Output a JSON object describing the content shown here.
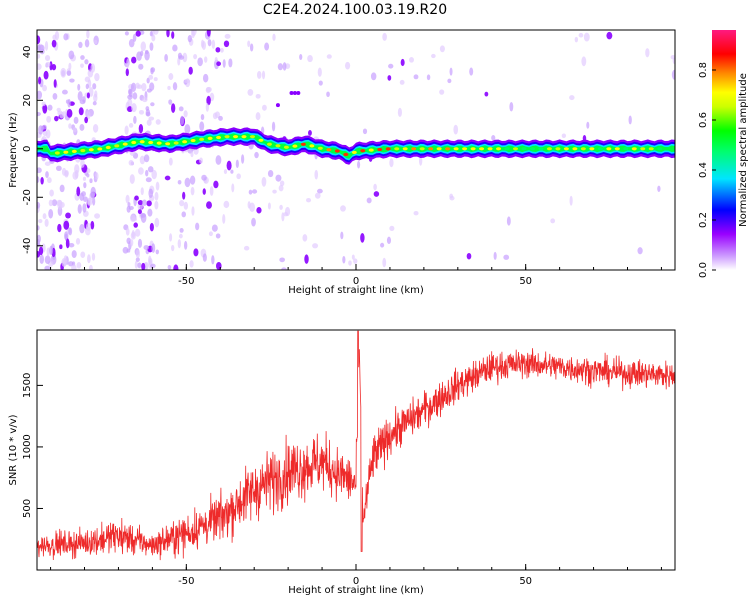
{
  "title": "C2E4.2024.100.03.19.R20",
  "colors": {
    "snr_line": "#ee2a2a",
    "colormap": [
      "#ffffff",
      "#9900ff",
      "#0000ff",
      "#00e5ff",
      "#00ff00",
      "#ffff00",
      "#ff8800",
      "#ff0000",
      "#ff1a80"
    ]
  },
  "chart_data": [
    {
      "type": "heatmap",
      "title": "C2E4.2024.100.03.19.R20",
      "xlabel": "Height of straight line (km)",
      "ylabel": "Frequency (Hz)",
      "xlim": [
        -94,
        94
      ],
      "ylim": [
        -50,
        49
      ],
      "xticks": [
        -50,
        0,
        50
      ],
      "yticks": [
        -40,
        -20,
        0,
        20,
        40
      ],
      "colorbar": {
        "label": "Normalized spectral amplitude",
        "range": [
          0,
          0.96
        ],
        "ticks": [
          "0.0",
          "0.2",
          "0.4",
          "0.6",
          "0.8"
        ]
      },
      "ridge": {
        "description_points": [
          [
            -90,
            -2
          ],
          [
            -75,
            0
          ],
          [
            -64,
            3
          ],
          [
            -55,
            2
          ],
          [
            -45,
            4
          ],
          [
            -38,
            5
          ],
          [
            -30,
            5
          ],
          [
            -26,
            2
          ],
          [
            -20,
            0.5
          ],
          [
            -15,
            2
          ],
          [
            -10,
            0
          ],
          [
            -5,
            -1
          ],
          [
            -2,
            -3
          ],
          [
            0,
            -1
          ],
          [
            10,
            0
          ],
          [
            30,
            0
          ],
          [
            50,
            0
          ],
          [
            94,
            0
          ]
        ],
        "peak_amplitude_region": [
          -20,
          30
        ]
      }
    },
    {
      "type": "line",
      "xlabel": "Height of straight line (km)",
      "ylabel": "SNR (10 * v/v)",
      "xlim": [
        -94,
        94
      ],
      "ylim": [
        0,
        1950
      ],
      "xticks": [
        -50,
        0,
        50
      ],
      "yticks": [
        500,
        1000,
        1500
      ],
      "series": [
        {
          "values_envelope": {
            "x": [
              -94,
              -80,
              -70,
              -60,
              -50,
              -40,
              -30,
              -20,
              -10,
              -5,
              0,
              1,
              2,
              5,
              10,
              20,
              30,
              40,
              50,
              60,
              70,
              80,
              94
            ],
            "y_mean": [
              200,
              220,
              280,
              200,
              300,
              420,
              650,
              800,
              880,
              780,
              700,
              1800,
              400,
              900,
              1100,
              1300,
              1500,
              1650,
              1680,
              1650,
              1620,
              1600,
              1580
            ],
            "y_spread": [
              120,
              130,
              180,
              120,
              200,
              230,
              300,
              320,
              300,
              250,
              250,
              100,
              200,
              250,
              200,
              180,
              170,
              150,
              140,
              140,
              140,
              140,
              140
            ]
          }
        }
      ]
    }
  ]
}
